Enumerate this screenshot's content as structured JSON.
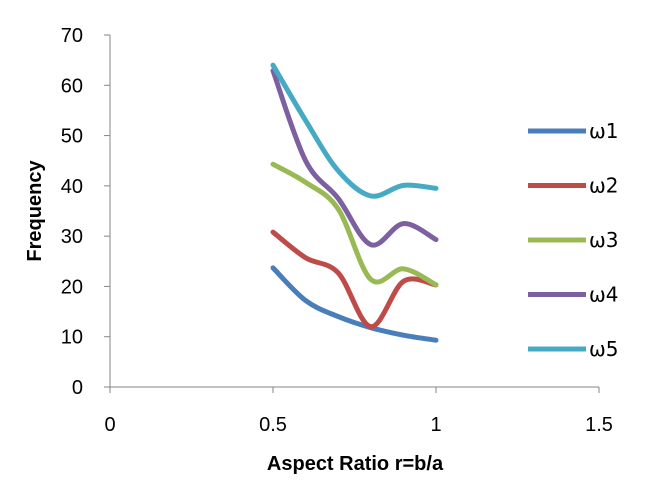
{
  "chart_data": {
    "type": "scatter",
    "mode": "smooth-lines",
    "xlabel": "Aspect Ratio r=b/a",
    "ylabel": "Frequency",
    "xlim": [
      0,
      1.5
    ],
    "ylim": [
      0,
      70
    ],
    "xticks": [
      "0",
      "0.5",
      "1",
      "1.5"
    ],
    "yticks": [
      "0",
      "10",
      "20",
      "30",
      "40",
      "50",
      "60",
      "70"
    ],
    "grid": false,
    "legend": "right",
    "x": [
      0.5,
      0.6,
      0.7,
      0.8,
      0.9,
      1.0
    ],
    "series": [
      {
        "name": "ω1",
        "color": "#4a7ebb",
        "values": [
          23.7,
          17.2,
          14.0,
          11.8,
          10.3,
          9.3
        ]
      },
      {
        "name": "ω2",
        "color": "#be4b48",
        "values": [
          30.8,
          25.7,
          22.7,
          12.0,
          21.0,
          20.3
        ]
      },
      {
        "name": "ω3",
        "color": "#98b954",
        "values": [
          44.3,
          40.7,
          35.4,
          21.4,
          23.5,
          20.3
        ]
      },
      {
        "name": "ω4",
        "color": "#7d60a0",
        "values": [
          62.9,
          45.0,
          37.5,
          28.3,
          32.5,
          29.3
        ]
      },
      {
        "name": "ω5",
        "color": "#46aac5",
        "values": [
          64.0,
          53.0,
          43.0,
          38.0,
          40.1,
          39.5
        ]
      }
    ]
  }
}
